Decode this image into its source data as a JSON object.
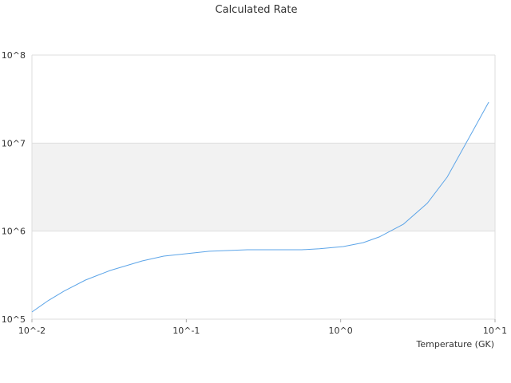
{
  "chart_data": {
    "type": "line",
    "title": "Calculated Rate",
    "x_label": "Temperature (GK)",
    "x_scale": "log",
    "y_scale": "log",
    "grid": true,
    "xlim": [
      0.01,
      10
    ],
    "ylim": [
      100000,
      100000000
    ],
    "xticks": [
      {
        "value": 0.01,
        "label": "10^-2"
      },
      {
        "value": 0.1,
        "label": "10^-1"
      },
      {
        "value": 1,
        "label": "10^0"
      },
      {
        "value": 10,
        "label": "10^1"
      }
    ],
    "yticks": [
      {
        "value": 100000,
        "label": "10^5"
      },
      {
        "value": 1000000,
        "label": "10^6"
      },
      {
        "value": 10000000,
        "label": "10^7"
      },
      {
        "value": 100000000,
        "label": "10^8"
      }
    ],
    "series": [
      {
        "color": "#5da5e8",
        "x": [
          0.01,
          0.0127,
          0.0161,
          0.0222,
          0.0321,
          0.0518,
          0.0714,
          0.1407,
          0.249,
          0.56,
          0.73,
          1.04,
          1.4,
          1.78,
          2.55,
          3.64,
          4.9,
          7.0,
          9.1
        ],
        "values": [
          120700,
          162000,
          208000,
          278000,
          357000,
          459000,
          520000,
          590000,
          615000,
          615000,
          630000,
          668000,
          740000,
          860000,
          1200000,
          2070000,
          4110000,
          12700000,
          29200000
        ]
      }
    ]
  }
}
